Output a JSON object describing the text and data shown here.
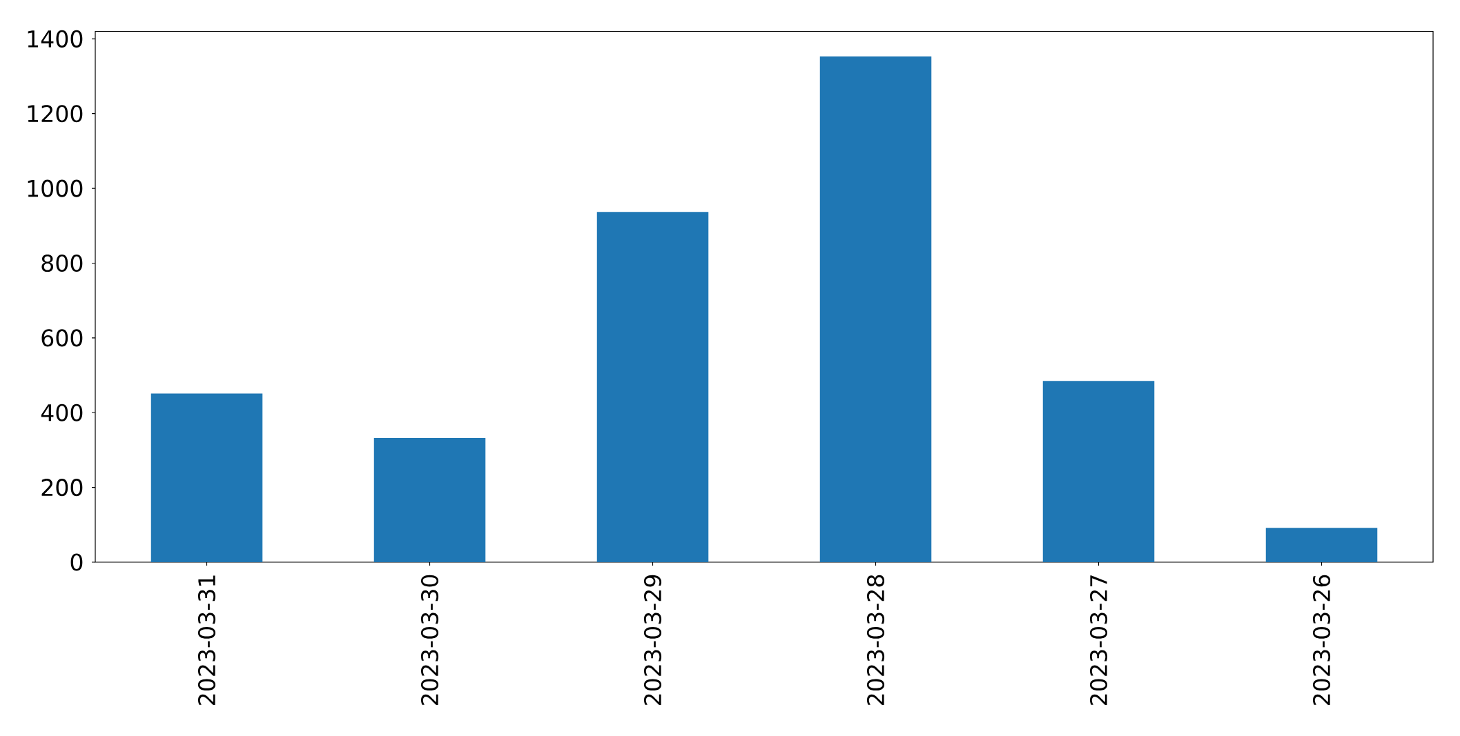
{
  "chart_data": {
    "type": "bar",
    "categories": [
      "2023-03-31",
      "2023-03-30",
      "2023-03-29",
      "2023-03-28",
      "2023-03-27",
      "2023-03-26"
    ],
    "values": [
      451,
      332,
      937,
      1353,
      485,
      92
    ],
    "color": "#1f77b4",
    "ylim": [
      0,
      1420
    ],
    "yticks": [
      0,
      200,
      400,
      600,
      800,
      1000,
      1200,
      1400
    ]
  }
}
